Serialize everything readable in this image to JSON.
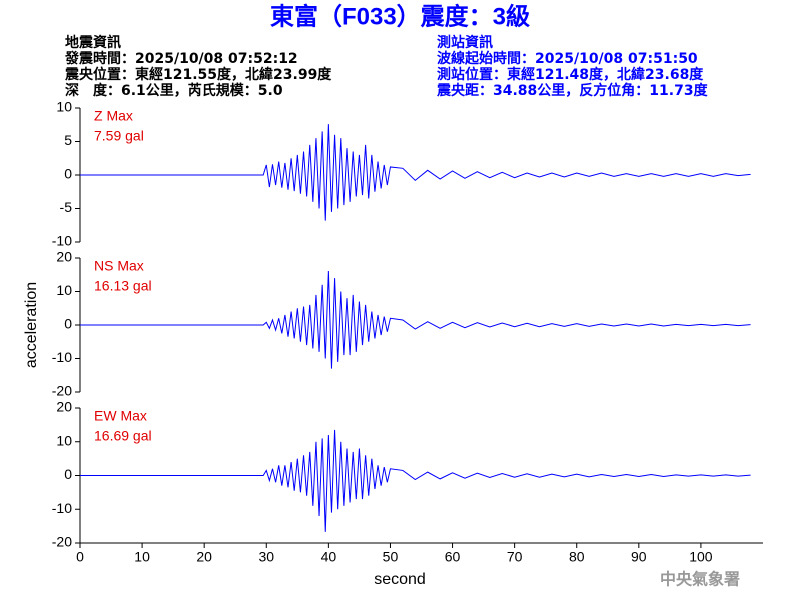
{
  "header": {
    "title": "東富（F033）震度：3級",
    "left": [
      "地震資訊",
      "發震時間：2025/10/08 07:52:12",
      "震央位置：東經121.55度，北緯23.99度",
      "深　度：6.1公里，芮氏規模：5.0"
    ],
    "right": [
      "測站資訊",
      "波線起始時間：2025/10/08 07:51:50",
      "測站位置：東經121.48度，北緯23.68度",
      "震央距：34.88公里，反方位角：11.73度"
    ]
  },
  "footer": "中央氣象署",
  "chart_data": [
    {
      "type": "line",
      "max_label": "Z Max",
      "max_value_label": "7.59 gal",
      "color": "#0000ff",
      "xlim": [
        0,
        110
      ],
      "ylim": [
        -10,
        10
      ],
      "yticks": [
        -10,
        -5,
        0,
        5,
        10
      ],
      "x": [
        0,
        29.5,
        30,
        30.5,
        31,
        31.5,
        32,
        32.5,
        33,
        33.5,
        34,
        34.5,
        35,
        35.5,
        36,
        36.5,
        37,
        37.5,
        38,
        38.5,
        39,
        39.5,
        40,
        40.5,
        41,
        41.5,
        42,
        42.5,
        43,
        43.5,
        44,
        44.5,
        45,
        45.5,
        46,
        46.5,
        47,
        47.5,
        48,
        48.5,
        49,
        49.5,
        50,
        52,
        54,
        56,
        58,
        60,
        62,
        64,
        66,
        68,
        70,
        72,
        74,
        76,
        78,
        80,
        82,
        84,
        86,
        88,
        90,
        92,
        94,
        96,
        98,
        100,
        102,
        104,
        106,
        108
      ],
      "values": [
        0,
        0,
        1.5,
        -1.8,
        1.6,
        -1.5,
        2,
        -1.9,
        1.8,
        -2.2,
        2.5,
        -2.4,
        3,
        -2.8,
        3.5,
        -3.2,
        4.5,
        -4,
        5.5,
        -5,
        6.5,
        -6.8,
        7.59,
        -5.5,
        6,
        -5,
        5.5,
        -4.5,
        4,
        -4,
        3.5,
        -3.2,
        3,
        -3,
        4.5,
        -3.5,
        3,
        -2.5,
        2,
        -2,
        1.5,
        -1.5,
        1.2,
        1,
        -0.8,
        0.7,
        -0.6,
        0.6,
        -0.5,
        0.5,
        -0.4,
        0.4,
        -0.4,
        0.3,
        -0.3,
        0.3,
        -0.3,
        0.3,
        -0.2,
        0.3,
        -0.2,
        0.2,
        -0.2,
        0.2,
        -0.2,
        0.2,
        -0.2,
        0.2,
        -0.2,
        0.2,
        -0.1,
        0.1
      ]
    },
    {
      "type": "line",
      "max_label": "NS Max",
      "max_value_label": "16.13 gal",
      "color": "#0000ff",
      "ylabel": "acceleration",
      "xlim": [
        0,
        110
      ],
      "ylim": [
        -20,
        20
      ],
      "yticks": [
        -20,
        -10,
        0,
        10,
        20
      ],
      "x": [
        0,
        29.5,
        30,
        30.5,
        31,
        31.5,
        32,
        32.5,
        33,
        33.5,
        34,
        34.5,
        35,
        35.5,
        36,
        36.5,
        37,
        37.5,
        38,
        38.5,
        39,
        39.5,
        40,
        40.5,
        41,
        41.5,
        42,
        42.5,
        43,
        43.5,
        44,
        44.5,
        45,
        45.5,
        46,
        46.5,
        47,
        47.5,
        48,
        48.5,
        49,
        49.5,
        50,
        52,
        54,
        56,
        58,
        60,
        62,
        64,
        66,
        68,
        70,
        72,
        74,
        76,
        78,
        80,
        82,
        84,
        86,
        88,
        90,
        92,
        94,
        96,
        98,
        100,
        102,
        104,
        106,
        108
      ],
      "values": [
        0,
        0,
        0.8,
        -1,
        1.5,
        -1.5,
        2,
        -2.5,
        3,
        -3.5,
        4,
        -4,
        5,
        -5,
        5.5,
        -6,
        6,
        -7,
        9,
        -8,
        12,
        -10,
        16.13,
        -13,
        14,
        -11,
        10,
        -9,
        8,
        -9,
        9,
        -8,
        7,
        -6,
        6,
        -5,
        4,
        -4,
        3,
        -3,
        2.5,
        -2,
        2,
        1.5,
        -1.2,
        1,
        -1,
        0.8,
        -0.8,
        0.7,
        -0.6,
        0.6,
        -0.5,
        0.5,
        -0.5,
        0.4,
        -0.4,
        0.4,
        -0.4,
        0.3,
        -0.3,
        0.3,
        -0.3,
        0.3,
        -0.3,
        0.2,
        -0.2,
        0.2,
        -0.2,
        0.2,
        -0.2,
        0.1
      ]
    },
    {
      "type": "line",
      "max_label": "EW Max",
      "max_value_label": "16.69 gal",
      "color": "#0000ff",
      "xlabel": "second",
      "xlim": [
        0,
        110
      ],
      "ylim": [
        -20,
        20
      ],
      "yticks": [
        -20,
        -10,
        0,
        10,
        20
      ],
      "xticks": [
        0,
        10,
        20,
        30,
        40,
        50,
        60,
        70,
        80,
        90,
        100
      ],
      "x": [
        0,
        29.5,
        30,
        30.5,
        31,
        31.5,
        32,
        32.5,
        33,
        33.5,
        34,
        34.5,
        35,
        35.5,
        36,
        36.5,
        37,
        37.5,
        38,
        38.5,
        39,
        39.5,
        40,
        40.5,
        41,
        41.5,
        42,
        42.5,
        43,
        43.5,
        44,
        44.5,
        45,
        45.5,
        46,
        46.5,
        47,
        47.5,
        48,
        48.5,
        49,
        49.5,
        50,
        52,
        54,
        56,
        58,
        60,
        62,
        64,
        66,
        68,
        70,
        72,
        74,
        76,
        78,
        80,
        82,
        84,
        86,
        88,
        90,
        92,
        94,
        96,
        98,
        100,
        102,
        104,
        106,
        108
      ],
      "values": [
        0,
        0,
        1.5,
        -1.5,
        2,
        -2,
        3,
        -3,
        3,
        -3.5,
        4,
        -4.5,
        5,
        -5,
        6,
        -6,
        7,
        -9,
        10,
        -12,
        11,
        -16.69,
        12,
        -11,
        13.5,
        -10,
        10,
        -9,
        8,
        -8,
        7,
        -7,
        8,
        -7,
        6,
        -6,
        5,
        -4,
        3,
        -3,
        2.5,
        -2,
        2,
        1.5,
        -1.2,
        1,
        -1,
        0.8,
        -0.8,
        0.7,
        -0.6,
        0.6,
        -0.5,
        0.5,
        -0.5,
        0.4,
        -0.4,
        0.4,
        -0.4,
        0.3,
        -0.3,
        0.3,
        -0.3,
        0.3,
        -0.3,
        0.2,
        -0.2,
        0.2,
        -0.2,
        0.2,
        -0.2,
        0.1
      ]
    }
  ]
}
